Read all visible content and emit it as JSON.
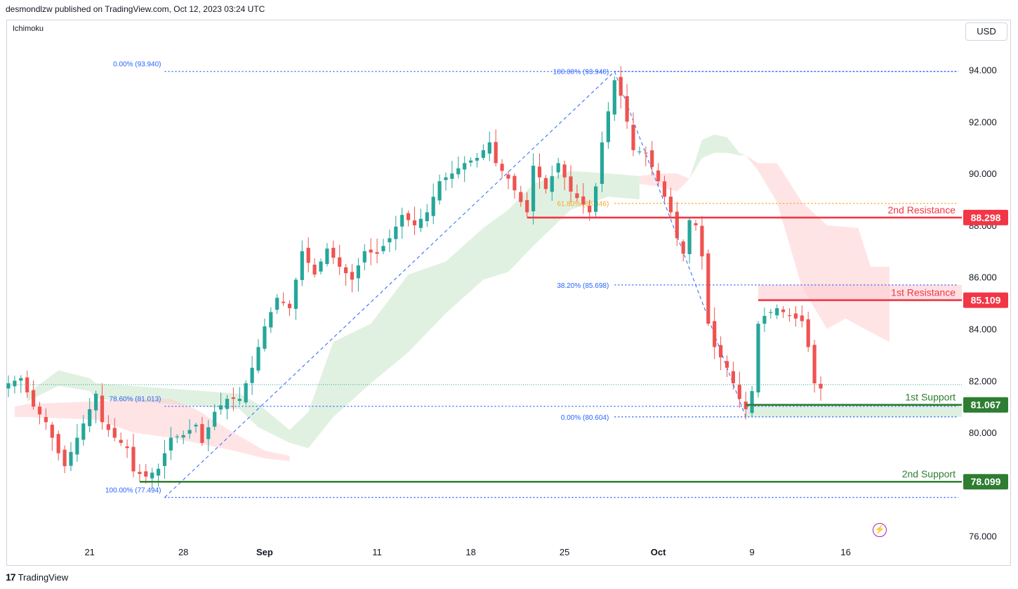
{
  "header": {
    "text": "desmondlzw published on TradingView.com, Oct 12, 2023 03:24 UTC"
  },
  "indicator": {
    "label": "Ichimoku"
  },
  "currency": {
    "label": "USD"
  },
  "footer": {
    "brand": "TradingView",
    "logo": "17"
  },
  "icons": {
    "flash": "⚡"
  },
  "colors": {
    "up": "#26a69a",
    "down": "#ef5350",
    "resistance": "#f23645",
    "support": "#2e7d32",
    "fib": "#2962ff",
    "fib_gold": "#f9a825",
    "cloud_bull": "#c8e6c9",
    "cloud_bear": "#ffcdd2"
  },
  "chart_data": {
    "type": "candlestick",
    "y_range": [
      75.5,
      95.5
    ],
    "y_ticks": [
      "76.000",
      "78.000",
      "80.000",
      "82.000",
      "84.000",
      "86.000",
      "88.000",
      "90.000",
      "92.000",
      "94.000"
    ],
    "y_tick_values": [
      76,
      78,
      80,
      82,
      84,
      86,
      88,
      90,
      92,
      94
    ],
    "x_ticks": [
      {
        "label": "21",
        "bar": 13,
        "bold": false
      },
      {
        "label": "28",
        "bar": 28,
        "bold": false
      },
      {
        "label": "Sep",
        "bar": 41,
        "bold": true
      },
      {
        "label": "11",
        "bar": 59,
        "bold": false
      },
      {
        "label": "18",
        "bar": 74,
        "bold": false
      },
      {
        "label": "25",
        "bar": 89,
        "bold": false
      },
      {
        "label": "Oct",
        "bar": 104,
        "bold": true
      },
      {
        "label": "9",
        "bar": 119,
        "bold": false
      },
      {
        "label": "16",
        "bar": 134,
        "bold": false
      }
    ],
    "bars_total": 141,
    "anchors": [
      [
        0,
        81.9
      ],
      [
        2,
        82.1
      ],
      [
        4,
        81.0
      ],
      [
        6,
        80.4
      ],
      [
        8,
        79.2
      ],
      [
        9,
        78.7
      ],
      [
        11,
        79.8
      ],
      [
        13,
        80.9
      ],
      [
        14,
        81.5
      ],
      [
        15,
        80.4
      ],
      [
        17,
        79.8
      ],
      [
        19,
        79.4
      ],
      [
        20,
        78.5
      ],
      [
        22,
        78.3
      ],
      [
        24,
        78.6
      ],
      [
        26,
        79.8
      ],
      [
        28,
        79.9
      ],
      [
        30,
        80.3
      ],
      [
        31,
        79.6
      ],
      [
        33,
        80.8
      ],
      [
        35,
        81.3
      ],
      [
        37,
        81.3
      ],
      [
        39,
        82.5
      ],
      [
        41,
        84.1
      ],
      [
        43,
        85.2
      ],
      [
        45,
        84.8
      ],
      [
        47,
        87.0
      ],
      [
        49,
        86.1
      ],
      [
        51,
        87.1
      ],
      [
        53,
        86.4
      ],
      [
        55,
        85.9
      ],
      [
        57,
        87.0
      ],
      [
        59,
        86.9
      ],
      [
        61,
        87.5
      ],
      [
        63,
        88.4
      ],
      [
        65,
        88.0
      ],
      [
        67,
        88.5
      ],
      [
        69,
        89.7
      ],
      [
        71,
        90.0
      ],
      [
        73,
        90.4
      ],
      [
        75,
        90.6
      ],
      [
        77,
        91.2
      ],
      [
        78,
        90.4
      ],
      [
        80,
        89.8
      ],
      [
        82,
        88.9
      ],
      [
        83,
        88.5
      ],
      [
        84,
        90.3
      ],
      [
        86,
        89.4
      ],
      [
        88,
        90.4
      ],
      [
        90,
        89.3
      ],
      [
        92,
        88.8
      ],
      [
        93,
        88.5
      ],
      [
        94,
        89.5
      ],
      [
        95,
        91.2
      ],
      [
        96,
        92.4
      ],
      [
        97,
        93.6
      ],
      [
        98,
        93.0
      ],
      [
        99,
        92.0
      ],
      [
        100,
        90.9
      ],
      [
        102,
        90.8
      ],
      [
        104,
        89.7
      ],
      [
        106,
        88.5
      ],
      [
        107,
        87.5
      ],
      [
        108,
        86.9
      ],
      [
        109,
        88.2
      ],
      [
        110,
        88.0
      ],
      [
        111,
        86.8
      ],
      [
        112,
        84.2
      ],
      [
        113,
        83.3
      ],
      [
        115,
        82.5
      ],
      [
        116,
        81.9
      ],
      [
        117,
        81.3
      ],
      [
        118,
        80.9
      ],
      [
        119,
        81.6
      ],
      [
        120,
        84.2
      ],
      [
        121,
        84.5
      ],
      [
        123,
        84.8
      ],
      [
        125,
        84.5
      ],
      [
        127,
        84.3
      ],
      [
        128,
        83.3
      ],
      [
        129,
        81.9
      ],
      [
        130,
        81.7
      ]
    ],
    "cloud_bull": {
      "upper": [
        [
          3,
          81.5
        ],
        [
          8,
          82.4
        ],
        [
          13,
          82.1
        ],
        [
          14,
          81.9
        ],
        [
          37,
          81.5
        ],
        [
          40,
          81.1
        ],
        [
          45,
          80.1
        ],
        [
          48,
          80.8
        ],
        [
          52,
          83.5
        ],
        [
          58,
          84.2
        ],
        [
          64,
          86.1
        ],
        [
          70,
          86.6
        ],
        [
          76,
          87.9
        ],
        [
          80,
          88.6
        ],
        [
          84,
          89.6
        ],
        [
          90,
          90.1
        ],
        [
          96,
          90.0
        ],
        [
          101,
          89.9
        ]
      ],
      "lower": [
        [
          3,
          81.2
        ],
        [
          8,
          81.8
        ],
        [
          13,
          81.6
        ],
        [
          14,
          81.3
        ],
        [
          37,
          80.9
        ],
        [
          40,
          80.2
        ],
        [
          45,
          79.6
        ],
        [
          48,
          79.4
        ],
        [
          52,
          80.6
        ],
        [
          58,
          81.9
        ],
        [
          64,
          83.1
        ],
        [
          70,
          84.6
        ],
        [
          76,
          85.9
        ],
        [
          80,
          86.2
        ],
        [
          84,
          87.2
        ],
        [
          90,
          88.6
        ],
        [
          96,
          89.1
        ],
        [
          101,
          89.0
        ]
      ],
      "upper2": [
        [
          109,
          89.8
        ],
        [
          111,
          91.3
        ],
        [
          113,
          91.5
        ],
        [
          115,
          91.4
        ],
        [
          117,
          90.8
        ],
        [
          118,
          90.7
        ]
      ],
      "lower2": [
        [
          109,
          89.8
        ],
        [
          111,
          90.6
        ],
        [
          113,
          90.8
        ],
        [
          115,
          90.8
        ],
        [
          117,
          90.7
        ],
        [
          118,
          90.7
        ]
      ]
    },
    "cloud_bear": {
      "upper": [
        [
          1,
          81.0
        ],
        [
          3,
          81.1
        ],
        [
          14,
          81.2
        ],
        [
          20,
          81.3
        ],
        [
          26,
          81.3
        ],
        [
          30,
          80.9
        ],
        [
          36,
          80.0
        ],
        [
          41,
          79.3
        ],
        [
          45,
          79.1
        ]
      ],
      "lower": [
        [
          1,
          80.6
        ],
        [
          3,
          80.6
        ],
        [
          14,
          80.5
        ],
        [
          20,
          80.0
        ],
        [
          26,
          79.8
        ],
        [
          30,
          79.6
        ],
        [
          36,
          79.3
        ],
        [
          41,
          79.0
        ],
        [
          45,
          78.9
        ]
      ],
      "upper2": [
        [
          101,
          89.9
        ],
        [
          104,
          90.0
        ],
        [
          107,
          90.0
        ],
        [
          109,
          89.8
        ]
      ],
      "lower2": [
        [
          101,
          89.6
        ],
        [
          104,
          89.5
        ],
        [
          107,
          89.3
        ],
        [
          109,
          89.8
        ]
      ],
      "upper3": [
        [
          118,
          90.7
        ],
        [
          120,
          90.4
        ],
        [
          123,
          90.4
        ],
        [
          127,
          88.9
        ],
        [
          131,
          88.0
        ],
        [
          136,
          87.9
        ],
        [
          138,
          86.4
        ],
        [
          141,
          86.4
        ]
      ],
      "lower3": [
        [
          118,
          90.7
        ],
        [
          120,
          90.1
        ],
        [
          123,
          88.9
        ],
        [
          127,
          85.6
        ],
        [
          131,
          84.0
        ],
        [
          134,
          84.4
        ],
        [
          137,
          84.0
        ],
        [
          141,
          83.5
        ]
      ]
    },
    "fib_up": {
      "levels": [
        {
          "label": "0.00% (93.940)",
          "value": 93.94
        },
        {
          "label": "78.60% (81.013)",
          "value": 81.013
        },
        {
          "label": "100.00% (77.494)",
          "value": 77.494
        }
      ],
      "from": [
        25,
        77.494
      ],
      "to": [
        97,
        93.94
      ]
    },
    "fib_down": {
      "levels": [
        {
          "label": "100.00% (93.940)",
          "value": 93.94,
          "gold": false
        },
        {
          "label": "61.80% (88.846)",
          "value": 88.846,
          "gold": true
        },
        {
          "label": "38.20% (85.698)",
          "value": 85.698,
          "gold": false
        },
        {
          "label": "0.00% (80.604)",
          "value": 80.604,
          "gold": false
        }
      ],
      "from": [
        97,
        93.94
      ],
      "to": [
        118,
        80.604
      ]
    },
    "current_price": 81.85,
    "levels": [
      {
        "name": "2nd Resistance",
        "value": 88.298,
        "price": "88.298",
        "kind": "resistance",
        "from_bar": 83
      },
      {
        "name": "1st Resistance",
        "value": 85.109,
        "price": "85.109",
        "kind": "resistance",
        "from_bar": 120
      },
      {
        "name": "1st Support",
        "value": 81.067,
        "price": "81.067",
        "kind": "support",
        "from_bar": 118
      },
      {
        "name": "2nd Support",
        "value": 78.099,
        "price": "78.099",
        "kind": "support",
        "from_bar": 21
      }
    ],
    "resistance_zone": {
      "from_bar": 120,
      "top": 85.698,
      "bottom": 85.109
    },
    "support_zone": {
      "from_bar": 118,
      "top": 81.067,
      "bottom": 80.604
    }
  }
}
